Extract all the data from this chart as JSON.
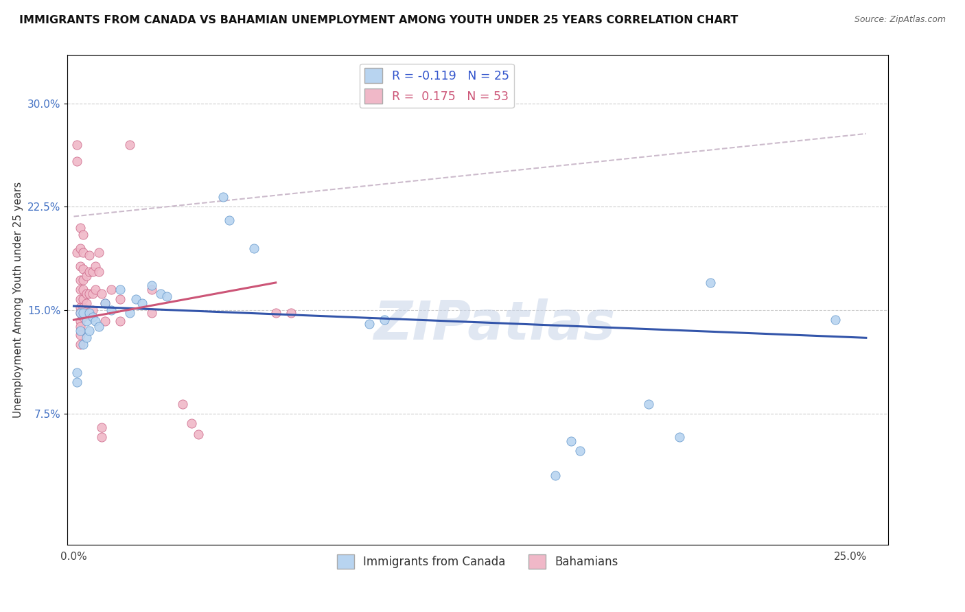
{
  "title": "IMMIGRANTS FROM CANADA VS BAHAMIAN UNEMPLOYMENT AMONG YOUTH UNDER 25 YEARS CORRELATION CHART",
  "source": "Source: ZipAtlas.com",
  "ylabel": "Unemployment Among Youth under 25 years",
  "x_tick_positions": [
    0.0,
    0.05,
    0.1,
    0.15,
    0.2,
    0.25
  ],
  "x_tick_labels": [
    "0.0%",
    "",
    "",
    "",
    "",
    "25.0%"
  ],
  "y_tick_positions": [
    0.075,
    0.15,
    0.225,
    0.3
  ],
  "y_tick_labels": [
    "7.5%",
    "15.0%",
    "22.5%",
    "30.0%"
  ],
  "xlim": [
    -0.002,
    0.262
  ],
  "ylim": [
    -0.02,
    0.335
  ],
  "watermark_text": "ZIPatlas",
  "blue_scatter": [
    [
      0.001,
      0.105
    ],
    [
      0.001,
      0.098
    ],
    [
      0.002,
      0.148
    ],
    [
      0.002,
      0.135
    ],
    [
      0.003,
      0.148
    ],
    [
      0.003,
      0.125
    ],
    [
      0.004,
      0.142
    ],
    [
      0.004,
      0.13
    ],
    [
      0.005,
      0.148
    ],
    [
      0.005,
      0.135
    ],
    [
      0.006,
      0.145
    ],
    [
      0.007,
      0.142
    ],
    [
      0.008,
      0.138
    ],
    [
      0.01,
      0.155
    ],
    [
      0.012,
      0.15
    ],
    [
      0.015,
      0.165
    ],
    [
      0.018,
      0.148
    ],
    [
      0.02,
      0.158
    ],
    [
      0.022,
      0.155
    ],
    [
      0.025,
      0.168
    ],
    [
      0.028,
      0.162
    ],
    [
      0.03,
      0.16
    ],
    [
      0.048,
      0.232
    ],
    [
      0.05,
      0.215
    ],
    [
      0.058,
      0.195
    ],
    [
      0.095,
      0.14
    ],
    [
      0.1,
      0.143
    ],
    [
      0.155,
      0.03
    ],
    [
      0.16,
      0.055
    ],
    [
      0.163,
      0.048
    ],
    [
      0.185,
      0.082
    ],
    [
      0.195,
      0.058
    ],
    [
      0.205,
      0.17
    ],
    [
      0.245,
      0.143
    ]
  ],
  "pink_scatter": [
    [
      0.001,
      0.27
    ],
    [
      0.001,
      0.258
    ],
    [
      0.001,
      0.192
    ],
    [
      0.002,
      0.21
    ],
    [
      0.002,
      0.195
    ],
    [
      0.002,
      0.182
    ],
    [
      0.002,
      0.172
    ],
    [
      0.002,
      0.165
    ],
    [
      0.002,
      0.158
    ],
    [
      0.002,
      0.152
    ],
    [
      0.002,
      0.148
    ],
    [
      0.002,
      0.142
    ],
    [
      0.002,
      0.138
    ],
    [
      0.002,
      0.132
    ],
    [
      0.002,
      0.125
    ],
    [
      0.003,
      0.205
    ],
    [
      0.003,
      0.192
    ],
    [
      0.003,
      0.18
    ],
    [
      0.003,
      0.172
    ],
    [
      0.003,
      0.165
    ],
    [
      0.003,
      0.158
    ],
    [
      0.003,
      0.152
    ],
    [
      0.003,
      0.145
    ],
    [
      0.004,
      0.175
    ],
    [
      0.004,
      0.162
    ],
    [
      0.004,
      0.155
    ],
    [
      0.005,
      0.19
    ],
    [
      0.005,
      0.178
    ],
    [
      0.005,
      0.162
    ],
    [
      0.005,
      0.148
    ],
    [
      0.006,
      0.178
    ],
    [
      0.006,
      0.162
    ],
    [
      0.006,
      0.15
    ],
    [
      0.007,
      0.182
    ],
    [
      0.007,
      0.165
    ],
    [
      0.008,
      0.192
    ],
    [
      0.008,
      0.178
    ],
    [
      0.009,
      0.162
    ],
    [
      0.009,
      0.065
    ],
    [
      0.009,
      0.058
    ],
    [
      0.01,
      0.155
    ],
    [
      0.01,
      0.142
    ],
    [
      0.012,
      0.165
    ],
    [
      0.015,
      0.158
    ],
    [
      0.015,
      0.142
    ],
    [
      0.018,
      0.27
    ],
    [
      0.025,
      0.165
    ],
    [
      0.025,
      0.148
    ],
    [
      0.035,
      0.082
    ],
    [
      0.038,
      0.068
    ],
    [
      0.04,
      0.06
    ],
    [
      0.065,
      0.148
    ],
    [
      0.07,
      0.148
    ]
  ],
  "blue_line_x": [
    0.0,
    0.255
  ],
  "blue_line_y": [
    0.153,
    0.13
  ],
  "pink_line_x": [
    0.0,
    0.065
  ],
  "pink_line_y": [
    0.143,
    0.17
  ],
  "pink_dash_line_x": [
    0.0,
    0.255
  ],
  "pink_dash_line_y": [
    0.218,
    0.278
  ],
  "scatter_size": 90,
  "blue_color": "#b8d4f0",
  "blue_edge_color": "#6699cc",
  "pink_color": "#f0b8c8",
  "pink_edge_color": "#cc6688",
  "blue_line_color": "#3355aa",
  "pink_line_color": "#cc5577",
  "pink_dash_color": "#ccbbcc"
}
